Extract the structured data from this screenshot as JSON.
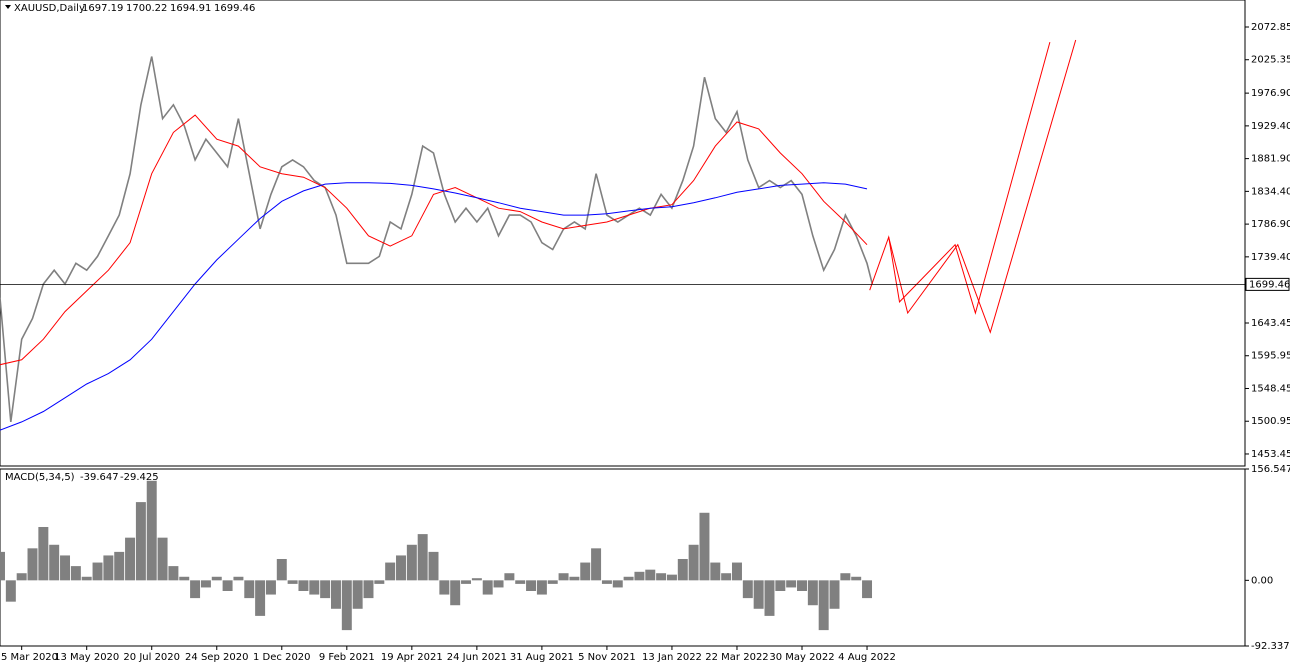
{
  "chart_data": [
    {
      "type": "line",
      "title": "XAUUSD,Daily",
      "ohlc": [
        1697.19,
        1700.22,
        1694.91,
        1699.46
      ],
      "xlim": [
        -16,
        903
      ],
      "ylim": [
        1436,
        2112
      ],
      "xticks": [
        {
          "value": 0,
          "label": "5 Mar 2020"
        },
        {
          "value": 48,
          "label": "13 May 2020"
        },
        {
          "value": 96,
          "label": "20 Jul 2020"
        },
        {
          "value": 144,
          "label": "24 Sep 2020"
        },
        {
          "value": 192,
          "label": "1 Dec 2020"
        },
        {
          "value": 240,
          "label": "9 Feb 2021"
        },
        {
          "value": 288,
          "label": "19 Apr 2021"
        },
        {
          "value": 336,
          "label": "24 Jun 2021"
        },
        {
          "value": 384,
          "label": "31 Aug 2021"
        },
        {
          "value": 432,
          "label": "5 Nov 2021"
        },
        {
          "value": 480,
          "label": "13 Jan 2022"
        },
        {
          "value": 528,
          "label": "22 Mar 2022"
        },
        {
          "value": 576,
          "label": "30 May 2022"
        },
        {
          "value": 624,
          "label": "4 Aug 2022"
        }
      ],
      "yticks": [
        2072.85,
        2025.35,
        {
          "value": 1976.9,
          "label": "1976.90"
        },
        {
          "value": 1929.4,
          "label": "1929.40"
        },
        {
          "value": 1881.9,
          "label": "1881.90"
        },
        {
          "value": 1834.4,
          "label": "1834.40"
        },
        {
          "value": 1786.9,
          "label": "1786.90"
        },
        {
          "value": 1739.4,
          "label": "1739.40"
        },
        1643.45,
        1595.95,
        1548.45,
        1500.95,
        1453.45
      ],
      "hline": 1699.46,
      "series": [
        {
          "color": "#808080",
          "width": 1.6,
          "x": [
            -16,
            -8,
            0,
            8,
            16,
            24,
            32,
            40,
            48,
            56,
            64,
            72,
            80,
            88,
            96,
            104,
            112,
            120,
            128,
            136,
            144,
            152,
            160,
            168,
            176,
            184,
            192,
            200,
            208,
            216,
            224,
            232,
            240,
            248,
            256,
            264,
            272,
            280,
            288,
            296,
            304,
            312,
            320,
            328,
            336,
            344,
            352,
            360,
            368,
            376,
            384,
            392,
            400,
            408,
            416,
            424,
            432,
            440,
            448,
            456,
            464,
            472,
            480,
            488,
            496,
            504,
            512,
            520,
            528,
            536,
            544,
            552,
            560,
            568,
            576,
            584,
            592,
            600,
            608,
            616,
            624,
            628
          ],
          "values": [
            1680,
            1500,
            1620,
            1650,
            1700,
            1720,
            1700,
            1730,
            1720,
            1740,
            1770,
            1800,
            1860,
            1960,
            2030,
            1940,
            1960,
            1930,
            1880,
            1910,
            1890,
            1870,
            1940,
            1860,
            1780,
            1830,
            1870,
            1880,
            1870,
            1850,
            1840,
            1800,
            1730,
            1730,
            1730,
            1740,
            1790,
            1780,
            1830,
            1900,
            1890,
            1830,
            1790,
            1810,
            1790,
            1810,
            1770,
            1800,
            1800,
            1790,
            1760,
            1750,
            1780,
            1790,
            1780,
            1860,
            1800,
            1790,
            1800,
            1810,
            1800,
            1830,
            1810,
            1850,
            1900,
            2000,
            1940,
            1920,
            1950,
            1880,
            1840,
            1850,
            1840,
            1850,
            1830,
            1770,
            1720,
            1750,
            1800,
            1770,
            1730,
            1699.46
          ]
        },
        {
          "color": "#ff0000",
          "width": 1,
          "x": [
            -16,
            0,
            16,
            32,
            48,
            64,
            80,
            96,
            112,
            128,
            144,
            160,
            176,
            192,
            208,
            224,
            240,
            256,
            272,
            288,
            304,
            320,
            336,
            352,
            368,
            384,
            400,
            416,
            432,
            448,
            464,
            480,
            496,
            512,
            528,
            544,
            560,
            576,
            592,
            608,
            624
          ],
          "values": [
            1583,
            1590,
            1620,
            1660,
            1690,
            1720,
            1760,
            1860,
            1920,
            1945,
            1910,
            1900,
            1870,
            1860,
            1855,
            1840,
            1810,
            1770,
            1755,
            1770,
            1830,
            1840,
            1825,
            1810,
            1805,
            1790,
            1780,
            1785,
            1790,
            1800,
            1810,
            1815,
            1850,
            1900,
            1935,
            1925,
            1890,
            1860,
            1820,
            1790,
            1757
          ]
        },
        {
          "color": "#0000ff",
          "width": 1,
          "x": [
            -16,
            0,
            16,
            32,
            48,
            64,
            80,
            96,
            112,
            128,
            144,
            160,
            176,
            192,
            208,
            224,
            240,
            256,
            272,
            288,
            304,
            320,
            336,
            352,
            368,
            384,
            400,
            416,
            432,
            448,
            464,
            480,
            496,
            512,
            528,
            544,
            560,
            576,
            592,
            608,
            624
          ],
          "values": [
            1488,
            1500,
            1515,
            1535,
            1555,
            1570,
            1590,
            1620,
            1660,
            1700,
            1735,
            1765,
            1795,
            1820,
            1835,
            1845,
            1847,
            1847,
            1846,
            1843,
            1838,
            1832,
            1825,
            1818,
            1810,
            1805,
            1800,
            1800,
            1802,
            1806,
            1810,
            1812,
            1818,
            1825,
            1833,
            1838,
            1843,
            1845,
            1847,
            1845,
            1838
          ]
        },
        {
          "color": "#ff0000",
          "width": 1,
          "x": [
            626,
            640,
            648,
            689,
            704,
            759
          ],
          "values": [
            1691,
            1768,
            1674,
            1757,
            1658,
            2051
          ]
        },
        {
          "color": "#ff0000",
          "width": 1,
          "x": [
            640,
            654,
            691,
            715,
            778
          ],
          "values": [
            1768,
            1658,
            1757,
            1630,
            2054
          ]
        }
      ]
    },
    {
      "type": "bar",
      "title": "MACD(5,34,5)",
      "readout": [
        -39.647,
        -29.425
      ],
      "xlim": [
        -16,
        903
      ],
      "ylim": [
        -92.337,
        156.547
      ],
      "yticks": [
        156.547,
        {
          "value": 0,
          "label": "0.00"
        },
        -92.337
      ],
      "color": "#808080",
      "x": [
        -16,
        -8,
        0,
        8,
        16,
        24,
        32,
        40,
        48,
        56,
        64,
        72,
        80,
        88,
        96,
        104,
        112,
        120,
        128,
        136,
        144,
        152,
        160,
        168,
        176,
        184,
        192,
        200,
        208,
        216,
        224,
        232,
        240,
        248,
        256,
        264,
        272,
        280,
        288,
        296,
        304,
        312,
        320,
        328,
        336,
        344,
        352,
        360,
        368,
        376,
        384,
        392,
        400,
        408,
        416,
        424,
        432,
        440,
        448,
        456,
        464,
        472,
        480,
        488,
        496,
        504,
        512,
        520,
        528,
        536,
        544,
        552,
        560,
        568,
        576,
        584,
        592,
        600,
        608,
        616,
        624
      ],
      "values": [
        40,
        -30,
        10,
        45,
        75,
        50,
        35,
        20,
        5,
        25,
        35,
        40,
        60,
        110,
        140,
        60,
        20,
        5,
        -25,
        -10,
        5,
        -15,
        5,
        -25,
        -50,
        -20,
        30,
        -5,
        -15,
        -20,
        -25,
        -40,
        -70,
        -40,
        -25,
        -5,
        25,
        35,
        50,
        65,
        40,
        -20,
        -35,
        -5,
        3,
        -20,
        -10,
        10,
        -5,
        -15,
        -20,
        -5,
        10,
        5,
        25,
        45,
        -5,
        -10,
        5,
        12,
        15,
        10,
        8,
        30,
        50,
        95,
        25,
        10,
        25,
        -25,
        -40,
        -50,
        -15,
        -10,
        -15,
        -35,
        -70,
        -40,
        10,
        5,
        -25
      ]
    }
  ]
}
